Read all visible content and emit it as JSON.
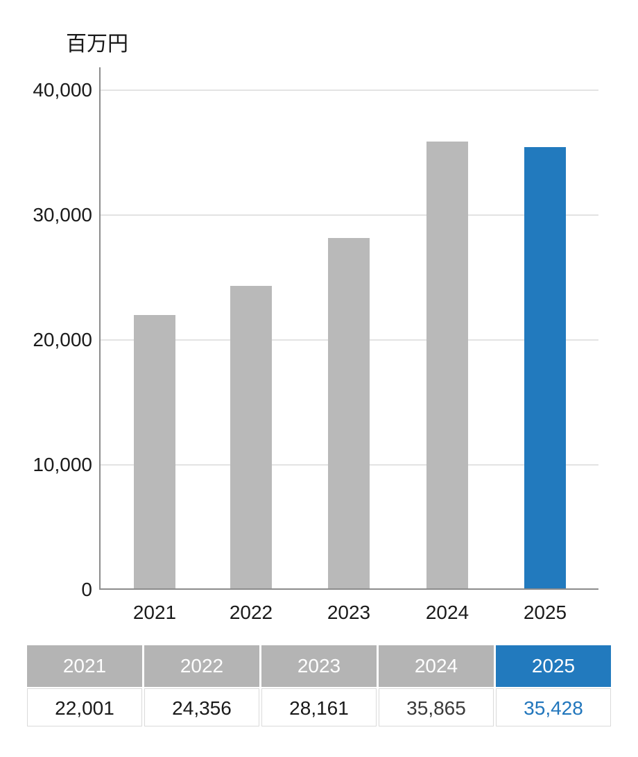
{
  "chart": {
    "unit_label": "百万円",
    "colors": {
      "bar_default": "#b9b9b9",
      "bar_highlight": "#227abe",
      "axis": "#8c8c8c",
      "gridline": "#e3e3e3"
    }
  },
  "chart_data": {
    "type": "bar",
    "title": "百万円",
    "xlabel": "",
    "ylabel": "百万円",
    "categories": [
      "2021",
      "2022",
      "2023",
      "2024",
      "2025"
    ],
    "values": [
      22001,
      24356,
      28161,
      35865,
      35428
    ],
    "bar_colors": [
      "#b9b9b9",
      "#b9b9b9",
      "#b9b9b9",
      "#b9b9b9",
      "#227abe"
    ],
    "highlight_category": "2025",
    "ylim": [
      0,
      40000
    ],
    "yticks": [
      0,
      10000,
      20000,
      30000,
      40000
    ],
    "ytick_labels": [
      "0",
      "10,000",
      "20,000",
      "30,000",
      "40,000"
    ],
    "grid": true,
    "legend": false
  },
  "table": {
    "headers": [
      "2021",
      "2022",
      "2023",
      "2024",
      "2025"
    ],
    "values": [
      "22,001",
      "24,356",
      "28,161",
      "35,865",
      "35,428"
    ],
    "highlight_index": 4,
    "colors": {
      "header_bg": "#b4b4b4",
      "header_highlight_bg": "#227abe",
      "header_text": "#ffffff",
      "border": "#dadada",
      "value_text_colors": [
        "#1a1a1a",
        "#1a1a1a",
        "#1a1a1a",
        "#3a3a3a",
        "#2176bc"
      ]
    }
  }
}
